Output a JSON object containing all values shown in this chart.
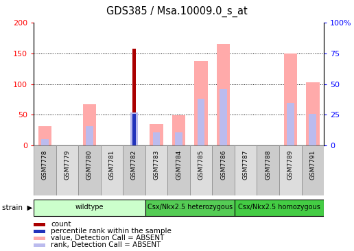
{
  "title": "GDS385 / Msa.10009.0_s_at",
  "samples": [
    "GSM7778",
    "GSM7779",
    "GSM7780",
    "GSM7781",
    "GSM7782",
    "GSM7783",
    "GSM7784",
    "GSM7785",
    "GSM7786",
    "GSM7787",
    "GSM7788",
    "GSM7789",
    "GSM7791"
  ],
  "value_absent": [
    32,
    0,
    67,
    0,
    0,
    35,
    49,
    138,
    165,
    0,
    0,
    150,
    103
  ],
  "rank_absent": [
    5,
    0,
    16,
    0,
    27,
    11,
    11,
    38,
    46,
    0,
    0,
    35,
    26
  ],
  "count": [
    0,
    0,
    0,
    0,
    157,
    0,
    0,
    0,
    0,
    0,
    0,
    0,
    0
  ],
  "pct_rank": [
    0,
    0,
    0,
    0,
    26,
    0,
    0,
    0,
    0,
    0,
    0,
    0,
    0
  ],
  "groups": [
    {
      "label": "wildtype",
      "start": 0,
      "end": 5,
      "color": "#ccffcc"
    },
    {
      "label": "Csx/Nkx2.5 heterozygous",
      "start": 5,
      "end": 9,
      "color": "#55cc55"
    },
    {
      "label": "Csx/Nkx2.5 homozygous",
      "start": 9,
      "end": 13,
      "color": "#44cc44"
    }
  ],
  "ylim_left": [
    0,
    200
  ],
  "ylim_right": [
    0,
    100
  ],
  "yticks_left": [
    0,
    50,
    100,
    150,
    200
  ],
  "yticks_right": [
    0,
    25,
    50,
    75,
    100
  ],
  "color_count": "#aa0000",
  "color_pct_rank": "#2233bb",
  "color_value_absent": "#ffaaaa",
  "color_rank_absent": "#bbbbee",
  "bar_width": 0.6,
  "figsize": [
    5.16,
    3.66
  ],
  "dpi": 100
}
